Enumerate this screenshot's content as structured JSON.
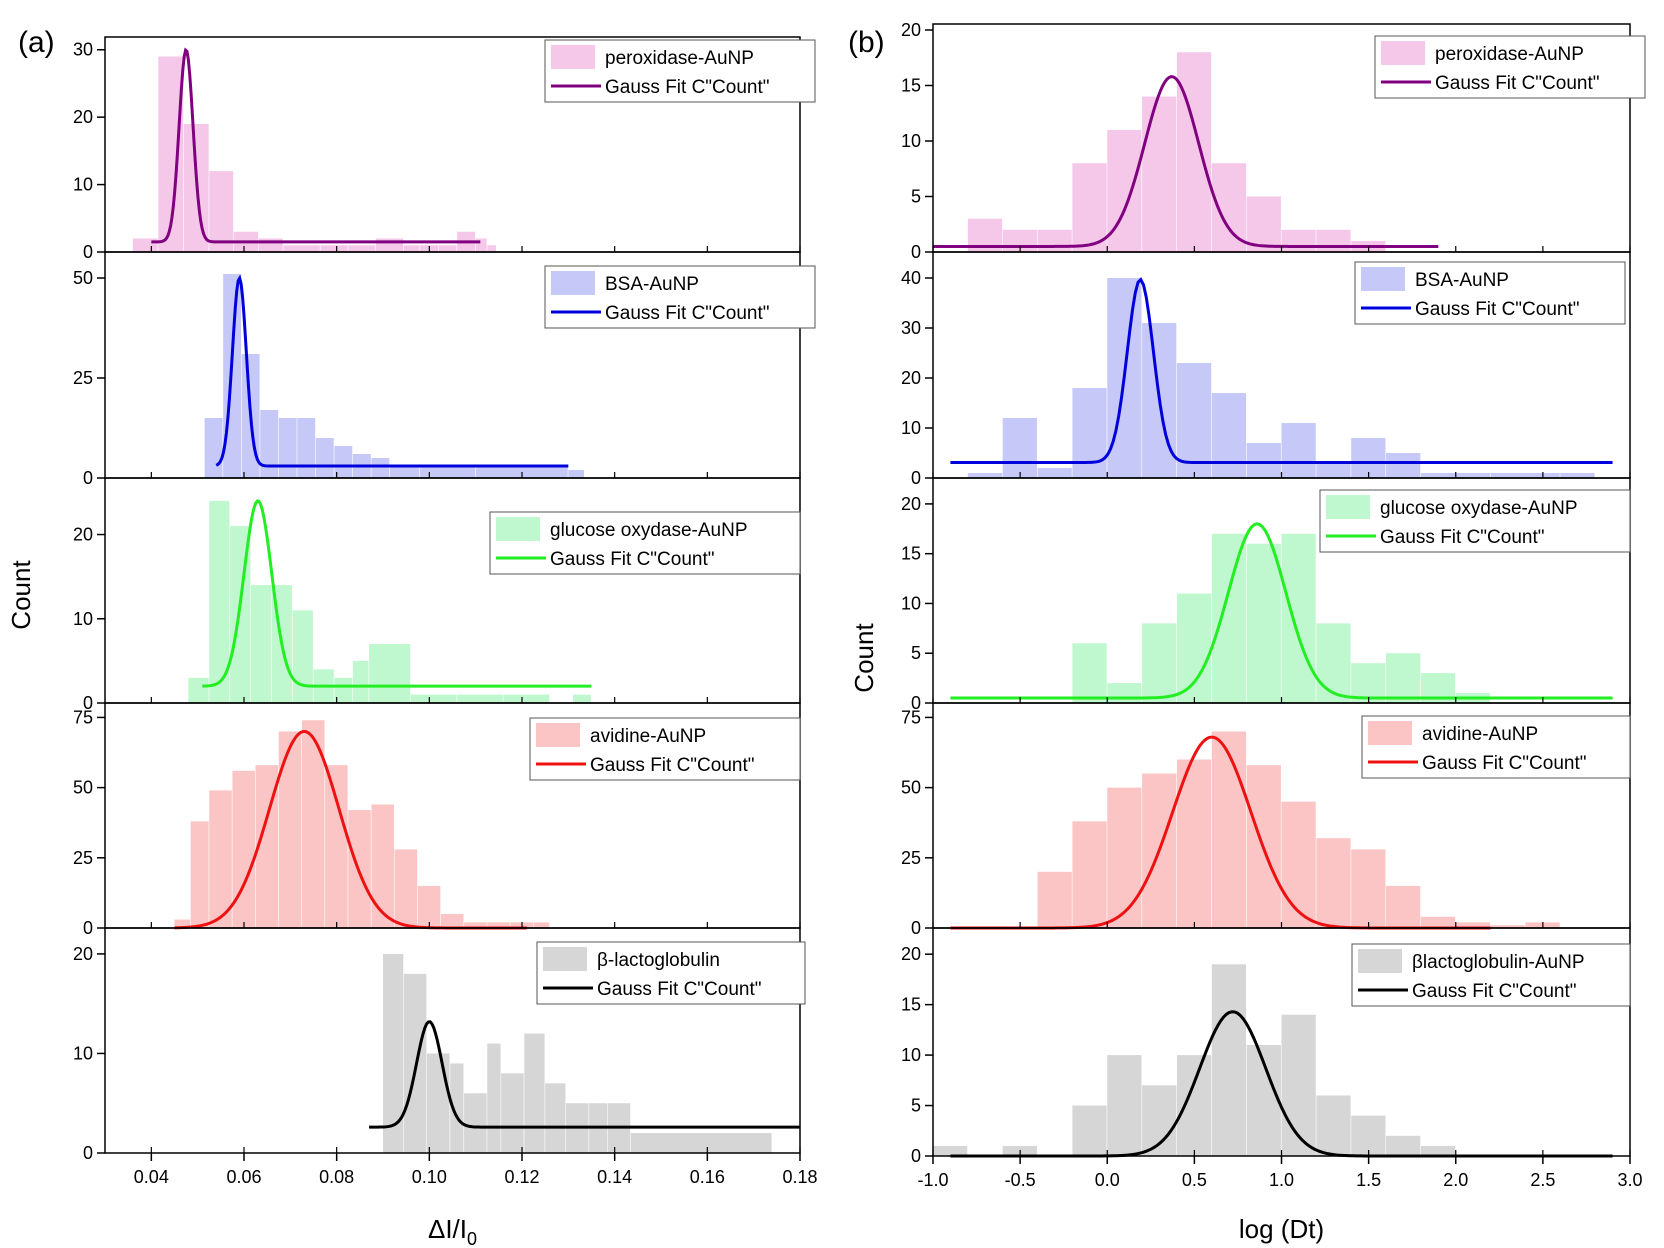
{
  "chart_data": [
    {
      "type": "bar",
      "panel_label": "(a)",
      "xlabel_main": "ΔI/I",
      "xlabel_sub": "0",
      "ylabel": "Count",
      "xlim": [
        0.03,
        0.18
      ],
      "xticks": [
        {
          "v": 0.04,
          "label": "0.04"
        },
        {
          "v": 0.06,
          "label": "0.06"
        },
        {
          "v": 0.08,
          "label": "0.08"
        },
        {
          "v": 0.1,
          "label": "0.10"
        },
        {
          "v": 0.12,
          "label": "0.12"
        },
        {
          "v": 0.14,
          "label": "0.14"
        },
        {
          "v": 0.16,
          "label": "0.16"
        },
        {
          "v": 0.18,
          "label": "0.18"
        }
      ],
      "subplots": [
        {
          "legend_bar": "peroxidase-AuNP",
          "legend_line": "Gauss Fit C\"Count\"",
          "color": "#800080",
          "fill": "#f5c8ea",
          "ylim": [
            0,
            31
          ],
          "yticks": [
            0,
            10,
            20,
            30
          ],
          "bins": [
            [
              0.036,
              0.0415,
              2
            ],
            [
              0.0415,
              0.047,
              29
            ],
            [
              0.047,
              0.0525,
              19
            ],
            [
              0.0525,
              0.0578,
              12
            ],
            [
              0.0578,
              0.0632,
              3
            ],
            [
              0.0632,
              0.0685,
              2
            ],
            [
              0.0685,
              0.0765,
              1
            ],
            [
              0.0765,
              0.0825,
              1
            ],
            [
              0.0825,
              0.0885,
              1
            ],
            [
              0.0885,
              0.0945,
              2
            ],
            [
              0.0945,
              0.098,
              1
            ],
            [
              0.098,
              0.102,
              1
            ],
            [
              0.102,
              0.106,
              1
            ],
            [
              0.106,
              0.11,
              3
            ],
            [
              0.11,
              0.1125,
              2
            ],
            [
              0.1125,
              0.1145,
              1
            ]
          ],
          "fit": {
            "y0": 1.5,
            "A": 28.5,
            "xc": 0.0475,
            "w": 0.003,
            "xmin": 0.04,
            "xmax": 0.111
          }
        },
        {
          "legend_bar": "BSA-AuNP",
          "legend_line": "Gauss Fit C\"Count\"",
          "color": "#0000dd",
          "fill": "#c6c8f8",
          "ylim": [
            0,
            55
          ],
          "yticks": [
            0,
            25,
            50
          ],
          "bins": [
            [
              0.0515,
              0.0555,
              15
            ],
            [
              0.0555,
              0.0595,
              51
            ],
            [
              0.0595,
              0.0635,
              31
            ],
            [
              0.0635,
              0.0675,
              17
            ],
            [
              0.0675,
              0.0715,
              15
            ],
            [
              0.0715,
              0.0755,
              15
            ],
            [
              0.0755,
              0.0795,
              10
            ],
            [
              0.0795,
              0.0835,
              8
            ],
            [
              0.0835,
              0.0875,
              6
            ],
            [
              0.0875,
              0.0915,
              5
            ],
            [
              0.0915,
              0.098,
              3
            ],
            [
              0.098,
              0.11,
              3
            ],
            [
              0.11,
              0.13,
              3
            ],
            [
              0.13,
              0.1335,
              2
            ]
          ],
          "fit": {
            "y0": 3,
            "A": 47,
            "xc": 0.059,
            "w": 0.003,
            "xmin": 0.054,
            "xmax": 0.13
          }
        },
        {
          "legend_bar": "glucose oxydase-AuNP",
          "legend_line": "Gauss Fit C\"Count\"",
          "color": "#22ee22",
          "fill": "#bff8cf",
          "ylim": [
            0,
            26
          ],
          "yticks": [
            0,
            10,
            20
          ],
          "bins": [
            [
              0.048,
              0.0525,
              3
            ],
            [
              0.0525,
              0.057,
              24
            ],
            [
              0.057,
              0.0615,
              21
            ],
            [
              0.0615,
              0.066,
              14
            ],
            [
              0.066,
              0.0705,
              14
            ],
            [
              0.0705,
              0.075,
              11
            ],
            [
              0.075,
              0.0795,
              4
            ],
            [
              0.0795,
              0.0835,
              3
            ],
            [
              0.0835,
              0.087,
              5
            ],
            [
              0.087,
              0.096,
              7
            ],
            [
              0.096,
              0.106,
              1
            ],
            [
              0.106,
              0.116,
              1
            ],
            [
              0.116,
              0.126,
              1
            ],
            [
              0.131,
              0.135,
              1
            ]
          ],
          "fit": {
            "y0": 2,
            "A": 22,
            "xc": 0.063,
            "w": 0.006,
            "xmin": 0.051,
            "xmax": 0.135
          }
        },
        {
          "legend_bar": "avidine-AuNP",
          "legend_line": "Gauss Fit C\"Count\"",
          "color": "#ee1111",
          "fill": "#fbc5c5",
          "ylim": [
            0,
            78
          ],
          "yticks": [
            0,
            25,
            50,
            75
          ],
          "bins": [
            [
              0.045,
              0.0485,
              3
            ],
            [
              0.0485,
              0.0525,
              38
            ],
            [
              0.0525,
              0.0575,
              49
            ],
            [
              0.0575,
              0.0625,
              56
            ],
            [
              0.0625,
              0.0675,
              58
            ],
            [
              0.0675,
              0.0725,
              70
            ],
            [
              0.0725,
              0.0775,
              74
            ],
            [
              0.0775,
              0.0825,
              58
            ],
            [
              0.0825,
              0.0875,
              42
            ],
            [
              0.0875,
              0.0925,
              44
            ],
            [
              0.0925,
              0.0975,
              28
            ],
            [
              0.0975,
              0.1025,
              15
            ],
            [
              0.1025,
              0.1075,
              5
            ],
            [
              0.1075,
              0.1125,
              2
            ],
            [
              0.1125,
              0.1175,
              2
            ],
            [
              0.1175,
              0.1225,
              2
            ],
            [
              0.1225,
              0.126,
              2
            ]
          ],
          "fit": {
            "y0": 0,
            "A": 70,
            "xc": 0.073,
            "w": 0.015,
            "xmin": 0.045,
            "xmax": 0.121
          }
        },
        {
          "legend_bar": "β-lactoglobulin",
          "legend_line": "Gauss Fit C\"Count\"",
          "color": "#000000",
          "fill": "#d6d6d6",
          "ylim": [
            0,
            22
          ],
          "yticks": [
            0,
            10,
            20
          ],
          "bins": [
            [
              0.09,
              0.0945,
              20
            ],
            [
              0.0945,
              0.0995,
              18
            ],
            [
              0.0995,
              0.1045,
              10
            ],
            [
              0.1045,
              0.1075,
              9
            ],
            [
              0.1075,
              0.1125,
              6
            ],
            [
              0.1125,
              0.1155,
              11
            ],
            [
              0.1155,
              0.1205,
              8
            ],
            [
              0.1205,
              0.125,
              12
            ],
            [
              0.125,
              0.1295,
              7
            ],
            [
              0.1295,
              0.1345,
              5
            ],
            [
              0.1345,
              0.1385,
              5
            ],
            [
              0.1385,
              0.1435,
              5
            ],
            [
              0.1435,
              0.174,
              2
            ]
          ],
          "fit": {
            "y0": 2.6,
            "A": 10.6,
            "xc": 0.1,
            "w": 0.0055,
            "xmin": 0.087,
            "xmax": 0.18
          }
        }
      ]
    },
    {
      "type": "bar",
      "panel_label": "(b)",
      "xlabel_main": "log (Dt)",
      "xlabel_sub": "",
      "ylabel": "Count",
      "xlim": [
        -1.0,
        3.0
      ],
      "xticks": [
        {
          "v": -1.0,
          "label": "-1.0"
        },
        {
          "v": -0.5,
          "label": "-0.5"
        },
        {
          "v": 0.0,
          "label": "0.0"
        },
        {
          "v": 0.5,
          "label": "0.5"
        },
        {
          "v": 1.0,
          "label": "1.0"
        },
        {
          "v": 1.5,
          "label": "1.5"
        },
        {
          "v": 2.0,
          "label": "2.0"
        },
        {
          "v": 2.5,
          "label": "2.5"
        },
        {
          "v": 3.0,
          "label": "3.0"
        }
      ],
      "subplots": [
        {
          "legend_bar": "peroxidase-AuNP",
          "legend_line": "Gauss Fit C\"Count\"",
          "color": "#800080",
          "fill": "#f5c8ea",
          "ylim": [
            0,
            20
          ],
          "yticks": [
            0,
            5,
            10,
            15,
            20
          ],
          "bins": [
            [
              -0.8,
              -0.6,
              3
            ],
            [
              -0.6,
              -0.4,
              2
            ],
            [
              -0.4,
              -0.2,
              2
            ],
            [
              -0.2,
              0.0,
              8
            ],
            [
              0.0,
              0.2,
              11
            ],
            [
              0.2,
              0.4,
              14
            ],
            [
              0.4,
              0.6,
              18
            ],
            [
              0.6,
              0.8,
              8
            ],
            [
              0.8,
              1.0,
              5
            ],
            [
              1.0,
              1.2,
              2
            ],
            [
              1.2,
              1.4,
              2
            ],
            [
              1.4,
              1.6,
              1
            ]
          ],
          "fit": {
            "y0": 0.5,
            "A": 15.3,
            "xc": 0.37,
            "w": 0.31,
            "xmin": -1.0,
            "xmax": 1.9
          }
        },
        {
          "legend_bar": "BSA-AuNP",
          "legend_line": "Gauss Fit C\"Count\"",
          "color": "#0000dd",
          "fill": "#c6c8f8",
          "ylim": [
            0,
            44
          ],
          "yticks": [
            0,
            10,
            20,
            30,
            40
          ],
          "bins": [
            [
              -0.8,
              -0.6,
              1
            ],
            [
              -0.6,
              -0.4,
              12
            ],
            [
              -0.4,
              -0.2,
              2
            ],
            [
              -0.2,
              0.0,
              18
            ],
            [
              0.0,
              0.2,
              40
            ],
            [
              0.2,
              0.4,
              31
            ],
            [
              0.4,
              0.6,
              23
            ],
            [
              0.6,
              0.8,
              17
            ],
            [
              0.8,
              1.0,
              7
            ],
            [
              1.0,
              1.2,
              11
            ],
            [
              1.2,
              1.4,
              3
            ],
            [
              1.4,
              1.6,
              8
            ],
            [
              1.6,
              1.8,
              5
            ],
            [
              1.8,
              2.2,
              1
            ],
            [
              2.2,
              2.6,
              1
            ],
            [
              2.6,
              2.8,
              1
            ]
          ],
          "fit": {
            "y0": 3.1,
            "A": 36.6,
            "xc": 0.19,
            "w": 0.15,
            "xmin": -0.9,
            "xmax": 2.9
          }
        },
        {
          "legend_bar": "glucose oxydase-AuNP",
          "legend_line": "Gauss Fit C\"Count\"",
          "color": "#22ee22",
          "fill": "#bff8cf",
          "ylim": [
            0,
            22
          ],
          "yticks": [
            0,
            5,
            10,
            15,
            20
          ],
          "bins": [
            [
              -0.2,
              0.0,
              6
            ],
            [
              0.0,
              0.2,
              2
            ],
            [
              0.2,
              0.4,
              8
            ],
            [
              0.4,
              0.6,
              11
            ],
            [
              0.6,
              0.8,
              17
            ],
            [
              0.8,
              1.0,
              16
            ],
            [
              1.0,
              1.2,
              17
            ],
            [
              1.2,
              1.4,
              8
            ],
            [
              1.4,
              1.6,
              4
            ],
            [
              1.6,
              1.8,
              5
            ],
            [
              1.8,
              2.0,
              3
            ],
            [
              2.0,
              2.2,
              1
            ]
          ],
          "fit": {
            "y0": 0.5,
            "A": 17.5,
            "xc": 0.86,
            "w": 0.33,
            "xmin": -0.9,
            "xmax": 2.9
          }
        },
        {
          "legend_bar": "avidine-AuNP",
          "legend_line": "Gauss Fit C\"Count\"",
          "color": "#ee1111",
          "fill": "#fbc5c5",
          "ylim": [
            0,
            78
          ],
          "yticks": [
            0,
            25,
            50,
            75
          ],
          "bins": [
            [
              -0.4,
              -0.2,
              20
            ],
            [
              -0.2,
              0.0,
              38
            ],
            [
              0.0,
              0.2,
              50
            ],
            [
              0.2,
              0.4,
              55
            ],
            [
              0.4,
              0.6,
              60
            ],
            [
              0.6,
              0.8,
              70
            ],
            [
              0.8,
              1.0,
              58
            ],
            [
              1.0,
              1.2,
              45
            ],
            [
              1.2,
              1.4,
              32
            ],
            [
              1.4,
              1.6,
              28
            ],
            [
              1.6,
              1.8,
              15
            ],
            [
              1.8,
              2.0,
              4
            ],
            [
              2.0,
              2.2,
              2
            ],
            [
              2.2,
              2.4,
              1
            ],
            [
              2.4,
              2.6,
              2
            ]
          ],
          "fit": {
            "y0": 0,
            "A": 68,
            "xc": 0.6,
            "w": 0.45,
            "xmin": -0.9,
            "xmax": 2.2
          }
        },
        {
          "legend_bar": "βlactoglobulin-AuNP",
          "legend_line": "Gauss Fit C\"Count\"",
          "color": "#000000",
          "fill": "#d6d6d6",
          "ylim": [
            0,
            22
          ],
          "yticks": [
            0,
            5,
            10,
            15,
            20
          ],
          "bins": [
            [
              -1.0,
              -0.8,
              1
            ],
            [
              -0.6,
              -0.4,
              1
            ],
            [
              -0.2,
              0.0,
              5
            ],
            [
              0.0,
              0.2,
              10
            ],
            [
              0.2,
              0.4,
              7
            ],
            [
              0.4,
              0.6,
              10
            ],
            [
              0.6,
              0.8,
              19
            ],
            [
              0.8,
              1.0,
              11
            ],
            [
              1.0,
              1.2,
              14
            ],
            [
              1.2,
              1.4,
              6
            ],
            [
              1.4,
              1.6,
              4
            ],
            [
              1.6,
              1.8,
              2
            ],
            [
              1.8,
              2.0,
              1
            ]
          ],
          "fit": {
            "y0": 0,
            "A": 14.3,
            "xc": 0.72,
            "w": 0.38,
            "xmin": -0.9,
            "xmax": 2.9
          }
        }
      ]
    }
  ]
}
